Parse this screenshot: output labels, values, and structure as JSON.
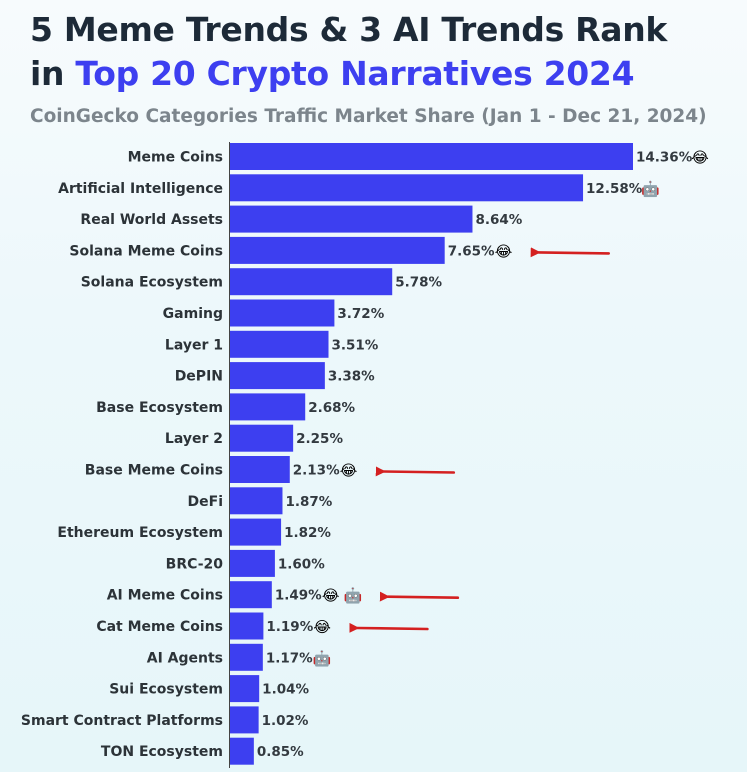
{
  "title": {
    "line1": "5 Meme Trends & 3 AI Trends Rank",
    "line2_prefix": "in ",
    "line2_accent": "Top 20 Crypto Narratives 2024"
  },
  "subtitle": "CoinGecko Categories Traffic Market Share (Jan 1 - Dec 21, 2024)",
  "colors": {
    "bar": "#3d3ff0",
    "accent": "#3d3ff0",
    "title": "#1d2a38",
    "subtitle": "#7c858c",
    "arrow": "#d42020"
  },
  "icons": {
    "meme": "😂",
    "ai": "🤖"
  },
  "chart_data": {
    "type": "bar",
    "orientation": "horizontal",
    "categories": [
      "Meme Coins",
      "Artificial Intelligence",
      "Real World Assets",
      "Solana Meme Coins",
      "Solana Ecosystem",
      "Gaming",
      "Layer 1",
      "DePIN",
      "Base Ecosystem",
      "Layer 2",
      "Base Meme Coins",
      "DeFi",
      "Ethereum Ecosystem",
      "BRC-20",
      "AI Meme Coins",
      "Cat Meme Coins",
      "AI Agents",
      "Sui Ecosystem",
      "Smart Contract Platforms",
      "TON Ecosystem"
    ],
    "values": [
      14.36,
      12.58,
      8.64,
      7.65,
      5.78,
      3.72,
      3.51,
      3.38,
      2.68,
      2.25,
      2.13,
      1.87,
      1.82,
      1.6,
      1.49,
      1.19,
      1.17,
      1.04,
      1.02,
      0.85
    ],
    "value_labels": [
      "14.36%",
      "12.58%",
      "8.64%",
      "7.65%",
      "5.78%",
      "3.72%",
      "3.51%",
      "3.38%",
      "2.68%",
      "2.25%",
      "2.13%",
      "1.87%",
      "1.82%",
      "1.60%",
      "1.49%",
      "1.19%",
      "1.17%",
      "1.04%",
      "1.02%",
      "0.85%"
    ],
    "tags": [
      [
        "meme"
      ],
      [
        "ai"
      ],
      [],
      [
        "meme"
      ],
      [],
      [],
      [],
      [],
      [],
      [],
      [
        "meme"
      ],
      [],
      [],
      [],
      [
        "meme",
        "ai"
      ],
      [
        "meme"
      ],
      [
        "ai"
      ],
      [],
      [],
      []
    ],
    "highlighted": [
      "Solana Meme Coins",
      "Base Meme Coins",
      "AI Meme Coins",
      "Cat Meme Coins"
    ],
    "xlim": [
      0,
      14.36
    ],
    "grid": false,
    "legend": "none"
  }
}
